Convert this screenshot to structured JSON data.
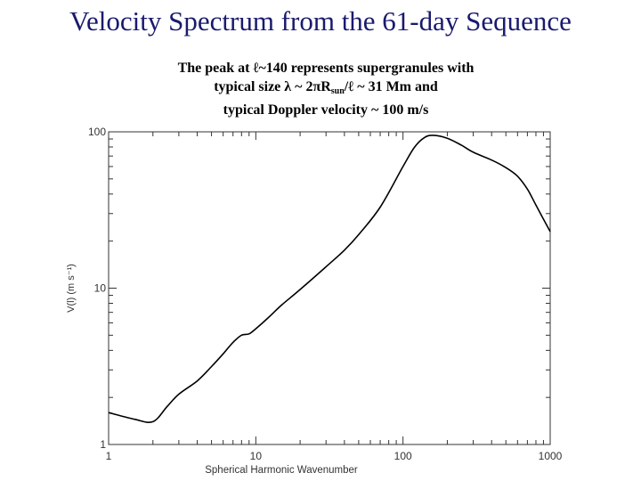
{
  "slide": {
    "title": "Velocity Spectrum from the 61-day Sequence",
    "caption_line1": "The peak at ℓ~140 represents supergranules with",
    "caption_line2_pre": "typical size λ ~ 2πR",
    "caption_line2_sub": "sun",
    "caption_line2_post": "/ℓ ~ 31 Mm and",
    "caption_line3": "typical Doppler velocity ~ 100 m/s"
  },
  "colors": {
    "title": "#1a1a6e",
    "curve": "#000000",
    "axis": "#333333"
  },
  "chart_data": {
    "type": "line",
    "title": "",
    "xlabel": "Spherical Harmonic Wavenumber",
    "ylabel": "V(l) (m s⁻¹)",
    "xscale": "log",
    "yscale": "log",
    "xlim": [
      1,
      1000
    ],
    "ylim": [
      1,
      100
    ],
    "x_ticks": [
      "1",
      "10",
      "100",
      "1000"
    ],
    "y_ticks": [
      "1",
      "10",
      "100"
    ],
    "grid": false,
    "series": [
      {
        "name": "V(l)",
        "x": [
          1,
          1.5,
          2,
          2.5,
          3,
          4,
          5,
          6,
          7,
          8,
          9,
          10,
          12,
          15,
          20,
          30,
          40,
          50,
          70,
          100,
          120,
          140,
          160,
          200,
          250,
          300,
          400,
          500,
          600,
          700,
          800,
          1000
        ],
        "y": [
          1.6,
          1.45,
          1.4,
          1.75,
          2.1,
          2.55,
          3.15,
          3.8,
          4.5,
          5.0,
          5.1,
          5.5,
          6.4,
          7.8,
          9.8,
          13.7,
          17.5,
          22,
          33,
          60,
          80,
          92,
          95,
          91,
          82,
          74,
          66,
          59,
          52,
          43,
          34,
          23
        ]
      }
    ]
  }
}
